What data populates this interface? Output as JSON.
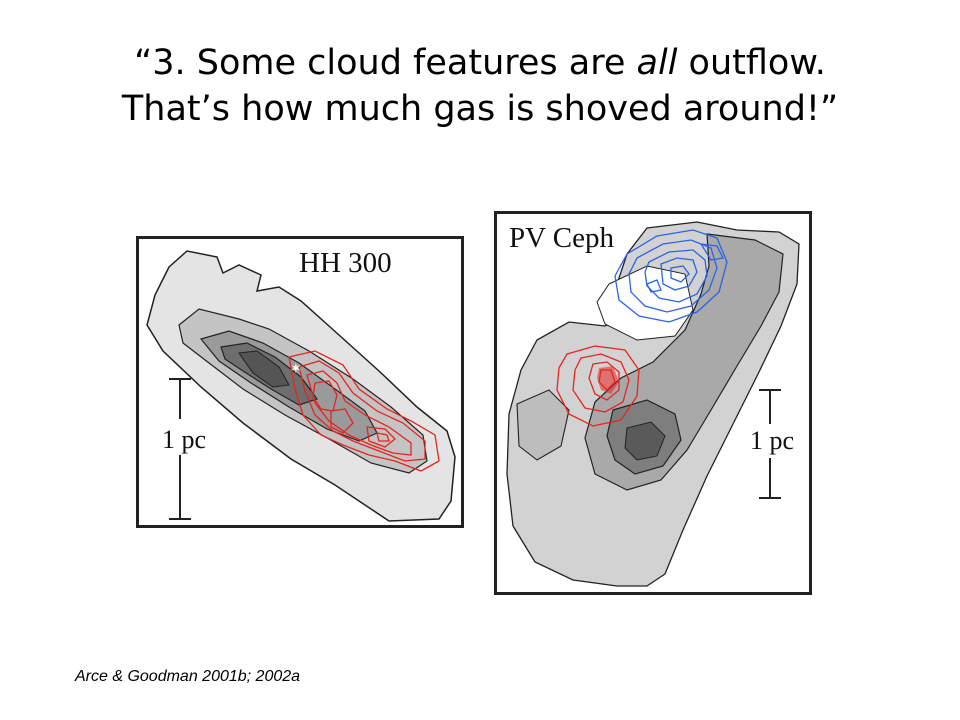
{
  "title": {
    "open_quote": "“",
    "line1_before": "3. Some cloud features are ",
    "line1_emphasis": "all",
    "line1_after": " outflow.",
    "line2": "That’s how much gas is shoved around!”"
  },
  "panels": {
    "left": {
      "label": "HH 300",
      "scale_bar": "1 pc"
    },
    "right": {
      "label": "PV Ceph",
      "scale_bar": "1 pc"
    }
  },
  "colors": {
    "redshifted_contours": "#e8231f",
    "blueshifted_contours": "#2b63e8",
    "cloud_light": "#e2e2e2",
    "cloud_mid": "#b8b8b8",
    "cloud_dark": "#7c7c7c",
    "cloud_darkest": "#555555"
  },
  "citation": "Arce & Goodman 2001b; 2002a"
}
